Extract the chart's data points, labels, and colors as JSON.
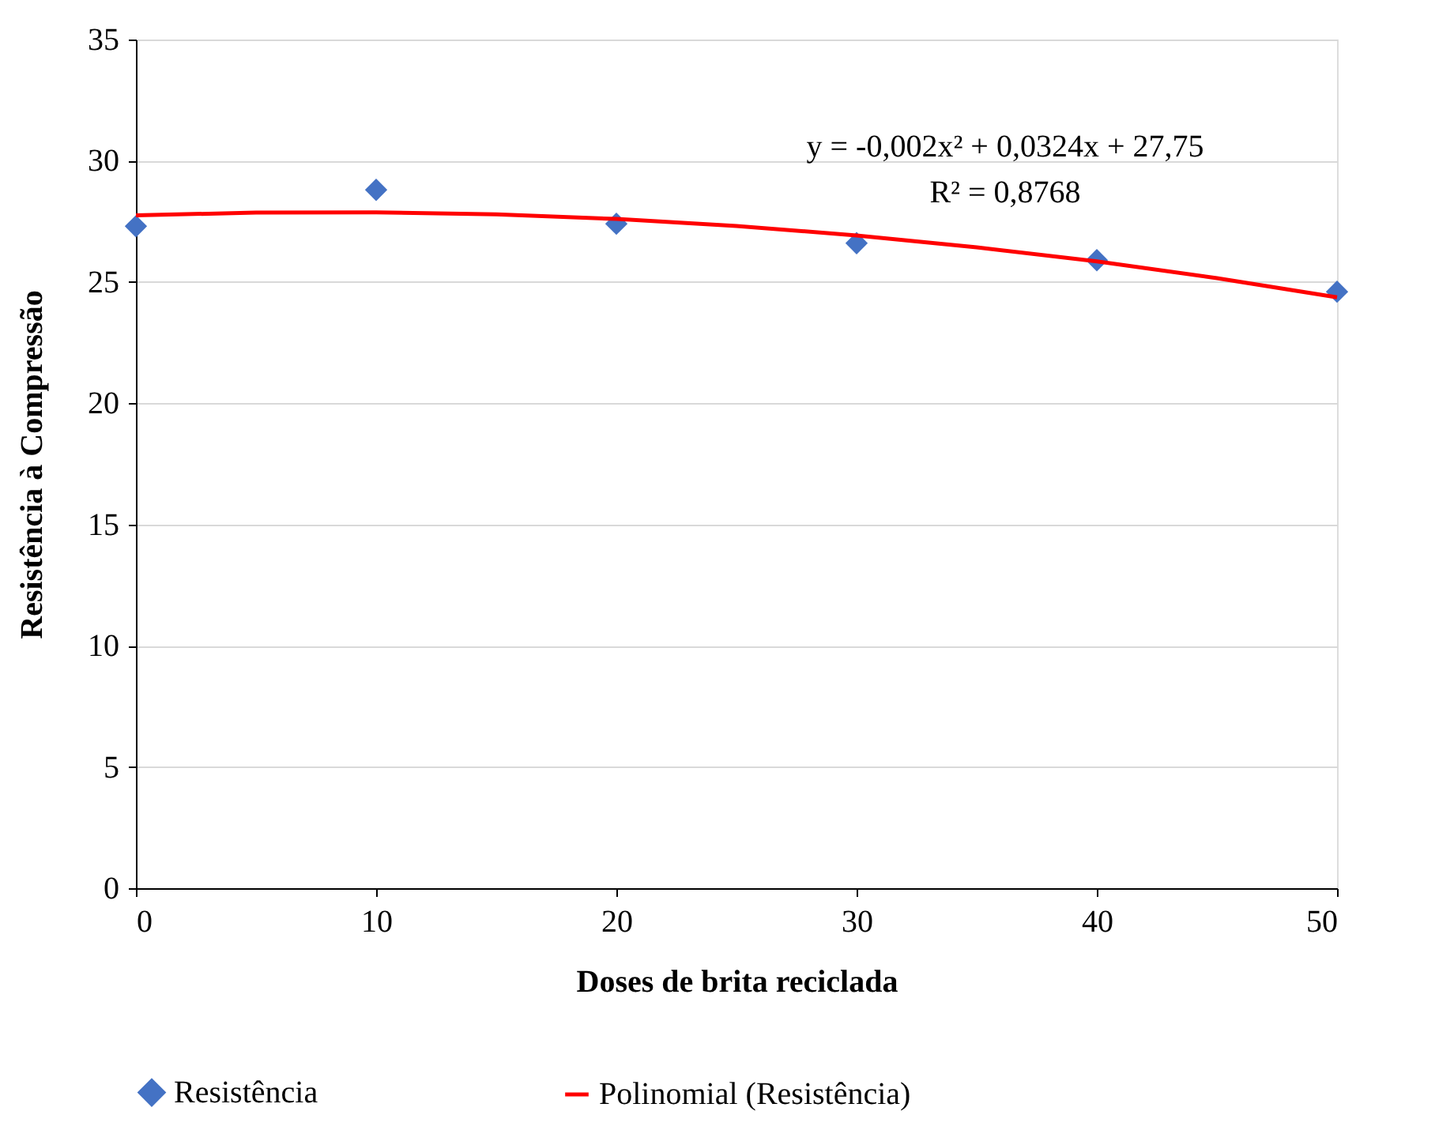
{
  "chart_data": {
    "type": "scatter",
    "xlabel": "Doses de brita reciclada",
    "ylabel": "Resistência à Compressão",
    "x": [
      0,
      10,
      20,
      30,
      40,
      50
    ],
    "series": [
      {
        "name": "Resistência",
        "color": "#4472c4",
        "marker": "diamond",
        "values": [
          27.3,
          28.8,
          27.4,
          26.6,
          25.9,
          24.6
        ]
      },
      {
        "name": "Polinomial (Resistência)",
        "type": "line",
        "color": "#ff0000",
        "line_style": "solid",
        "x": [
          0,
          5,
          10,
          15,
          20,
          25,
          30,
          35,
          40,
          45,
          50
        ],
        "values": [
          27.75,
          27.86,
          27.87,
          27.79,
          27.6,
          27.31,
          26.92,
          26.43,
          25.85,
          25.16,
          24.37
        ]
      }
    ],
    "annotations": [
      "y = -0,002x² + 0,0324x + 27,75",
      "R² = 0,8768"
    ],
    "xlim": [
      0,
      50
    ],
    "xticks": [
      0,
      10,
      20,
      30,
      40,
      50
    ],
    "ylim": [
      0,
      35
    ],
    "yticks": [
      0,
      5,
      10,
      15,
      20,
      25,
      30,
      35
    ],
    "grid": "y",
    "legend": "bottom"
  }
}
